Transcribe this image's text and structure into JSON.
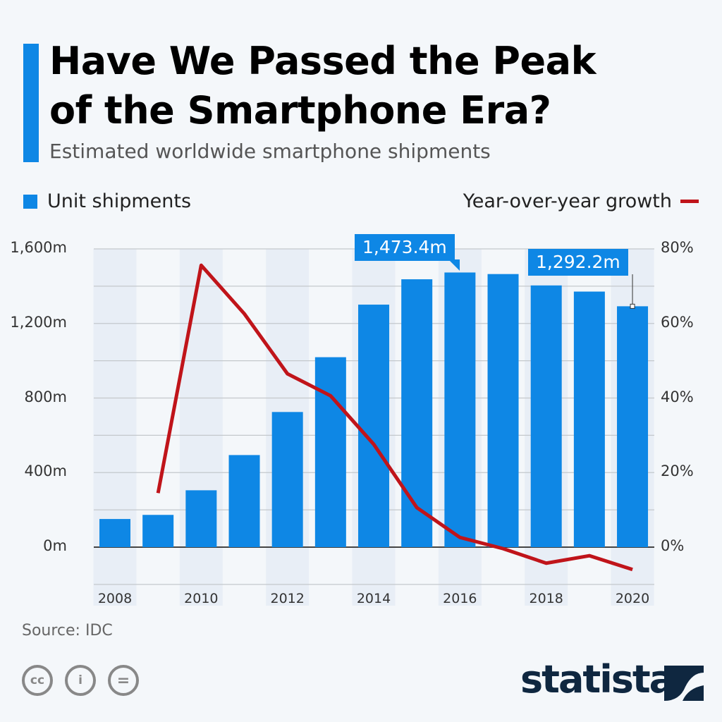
{
  "header": {
    "title_line1": "Have We Passed the Peak",
    "title_line2": "of the Smartphone Era?",
    "subtitle": "Estimated worldwide smartphone shipments"
  },
  "chart_data": {
    "type": "bar+line",
    "categories": [
      "2008",
      "2009",
      "2010",
      "2011",
      "2012",
      "2013",
      "2014",
      "2015",
      "2016",
      "2017",
      "2018",
      "2019",
      "2020"
    ],
    "series": [
      {
        "name": "Unit shipments",
        "type": "bar",
        "axis": "left",
        "color": "#0e87e5",
        "values": [
          151,
          173,
          305,
          494,
          725,
          1019,
          1301,
          1437,
          1473.4,
          1465,
          1404,
          1371,
          1292.2
        ]
      },
      {
        "name": "Year-over-year growth",
        "type": "line",
        "axis": "right",
        "color": "#c0141a",
        "values": [
          null,
          14.5,
          75.6,
          62.6,
          46.5,
          40.6,
          27.6,
          10.6,
          2.6,
          -0.4,
          -4.3,
          -2.3,
          -6.0
        ]
      }
    ],
    "y_left": {
      "ticks": [
        "0m",
        "400m",
        "800m",
        "1,200m",
        "1,600m"
      ],
      "tick_values": [
        0,
        400,
        800,
        1200,
        1600
      ],
      "range": [
        -200,
        1600
      ]
    },
    "y_right": {
      "ticks": [
        "0%",
        "20%",
        "40%",
        "60%",
        "80%"
      ],
      "tick_values": [
        0,
        20,
        40,
        60,
        80
      ],
      "range": [
        -10,
        80
      ]
    },
    "x_ticks": [
      "2008",
      "2010",
      "2012",
      "2014",
      "2016",
      "2018",
      "2020"
    ],
    "annotations": [
      {
        "category": "2016",
        "label": "1,473.4m"
      },
      {
        "category": "2020",
        "label": "1,292.2m"
      }
    ],
    "grid": true,
    "legend": {
      "left": "Unit shipments",
      "right": "Year-over-year growth",
      "placement": "top"
    }
  },
  "footer": {
    "source": "Source: IDC",
    "license_icons": [
      "cc-icon",
      "attribution-icon",
      "no-derivatives-icon"
    ],
    "logo": "statista"
  }
}
